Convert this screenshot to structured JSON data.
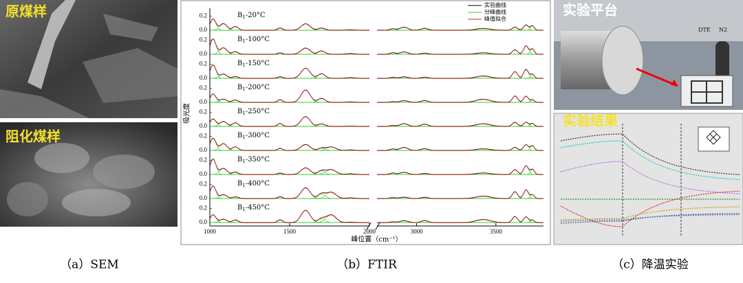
{
  "sem": {
    "raw_label": "原煤样",
    "inhibited_label": "阻化煤样",
    "caption": "（a）SEM"
  },
  "chart_data": {
    "type": "line",
    "caption": "（b）FTIR",
    "x_label": "峰位置（cm⁻¹）",
    "y_label": "吸光度",
    "legend": [
      {
        "name": "实验曲线",
        "color": "#000000"
      },
      {
        "name": "分峰曲线",
        "color": "#33cc33"
      },
      {
        "name": "峰值拟合",
        "color": "#dd2222"
      }
    ],
    "row_prefix": "B",
    "row_sub": "1",
    "rows": [
      "-20°C",
      "-100°C",
      "-150°C",
      "-200°C",
      "-250°C",
      "-300°C",
      "-350°C",
      "-400°C",
      "-450°C"
    ],
    "xlim": [
      1000,
      3800
    ],
    "x_break": [
      2000,
      2750
    ],
    "xticks": [
      1000,
      1500,
      2000,
      3000,
      3500
    ],
    "ylim": [
      0,
      0.3
    ],
    "yticks": [
      {
        "value": 0,
        "label": "0.0"
      },
      {
        "value": 0.2,
        "label": "0.2"
      }
    ]
  },
  "experiment": {
    "platform_label": "实验平台",
    "dte_label": "DTE",
    "n2_label": "N2",
    "result_label": "实验结果",
    "caption": "（c）降温实验"
  }
}
